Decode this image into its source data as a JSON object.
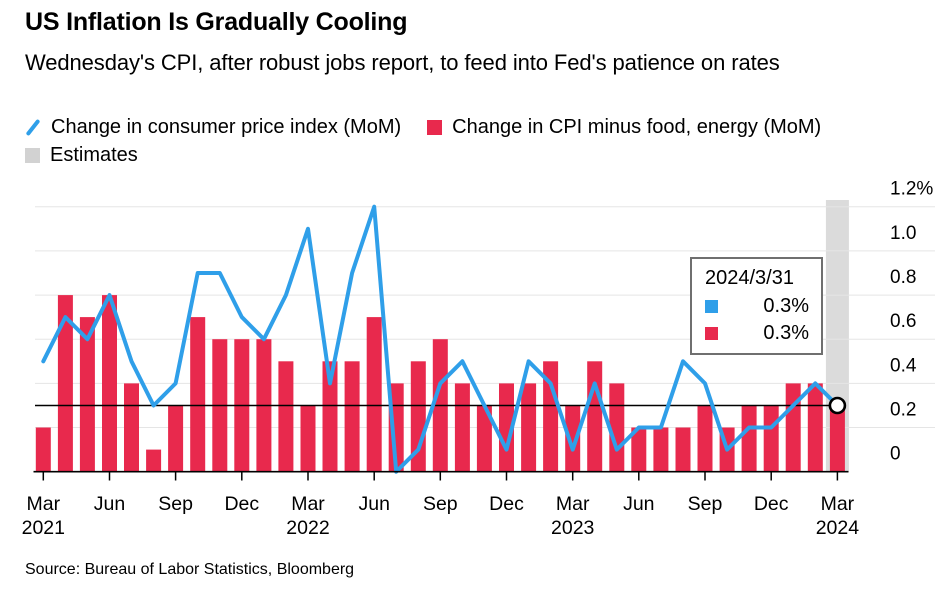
{
  "header": {
    "title": "US Inflation Is Gradually Cooling",
    "subtitle": "Wednesday's CPI, after robust jobs report, to feed into Fed's patience on rates"
  },
  "legend": [
    {
      "label": "Change in consumer price index (MoM)",
      "type": "line",
      "color": "#2F9FE9"
    },
    {
      "label": "Change in CPI minus food, energy (MoM)",
      "type": "bar",
      "color": "#E8294D"
    },
    {
      "label": "Estimates",
      "type": "band",
      "color": "#D2D2D2"
    }
  ],
  "tooltip": {
    "date": "2024/3/31",
    "rows": [
      {
        "series": "Change in consumer price index (MoM)",
        "color": "#2F9FE9",
        "value": "0.3%"
      },
      {
        "series": "Change in CPI minus food, energy (MoM)",
        "color": "#E8294D",
        "value": "0.3%"
      }
    ]
  },
  "source": "Source: Bureau of Labor Statistics, Bloomberg",
  "chart_data": {
    "type": "bar+line",
    "title": "US Inflation Is Gradually Cooling",
    "x": [
      "Mar 2021",
      "Apr 2021",
      "May 2021",
      "Jun 2021",
      "Jul 2021",
      "Aug 2021",
      "Sep 2021",
      "Oct 2021",
      "Nov 2021",
      "Dec 2021",
      "Jan 2022",
      "Feb 2022",
      "Mar 2022",
      "Apr 2022",
      "May 2022",
      "Jun 2022",
      "Jul 2022",
      "Aug 2022",
      "Sep 2022",
      "Oct 2022",
      "Nov 2022",
      "Dec 2022",
      "Jan 2023",
      "Feb 2023",
      "Mar 2023",
      "Apr 2023",
      "May 2023",
      "Jun 2023",
      "Jul 2023",
      "Aug 2023",
      "Sep 2023",
      "Oct 2023",
      "Nov 2023",
      "Dec 2023",
      "Jan 2024",
      "Feb 2024",
      "Mar 2024"
    ],
    "series": [
      {
        "name": "Change in consumer price index (MoM)",
        "type": "line",
        "color": "#2F9FE9",
        "values": [
          0.5,
          0.7,
          0.6,
          0.8,
          0.5,
          0.3,
          0.4,
          0.9,
          0.9,
          0.7,
          0.6,
          0.8,
          1.1,
          0.4,
          0.9,
          1.2,
          0.0,
          0.1,
          0.4,
          0.5,
          0.3,
          0.1,
          0.5,
          0.4,
          0.1,
          0.4,
          0.1,
          0.2,
          0.2,
          0.5,
          0.4,
          0.1,
          0.2,
          0.2,
          0.3,
          0.4,
          0.3
        ]
      },
      {
        "name": "Change in CPI minus food, energy (MoM)",
        "type": "bar",
        "color": "#E8294D",
        "values": [
          0.2,
          0.8,
          0.7,
          0.8,
          0.4,
          0.1,
          0.3,
          0.7,
          0.6,
          0.6,
          0.6,
          0.5,
          0.3,
          0.5,
          0.5,
          0.7,
          0.4,
          0.5,
          0.6,
          0.4,
          0.3,
          0.4,
          0.4,
          0.5,
          0.3,
          0.5,
          0.4,
          0.2,
          0.2,
          0.2,
          0.3,
          0.2,
          0.3,
          0.3,
          0.4,
          0.4,
          0.3
        ]
      }
    ],
    "estimates": {
      "index": 36,
      "label": "Estimates",
      "band_color": "#DBDBDB"
    },
    "last_point": {
      "index": 36,
      "value": 0.3,
      "marker": "open-circle"
    },
    "tracking_line_value": 0.3,
    "ylim": [
      0,
      1.2
    ],
    "yticks": [
      0,
      0.2,
      0.4,
      0.6,
      0.8,
      1.0,
      1.2
    ],
    "ytick_labels": [
      "0",
      "0.2",
      "0.4",
      "0.6",
      "0.8",
      "1.0",
      "1.2%"
    ],
    "xticks": [
      {
        "i": 0,
        "month": "Mar",
        "year": "2021"
      },
      {
        "i": 3,
        "month": "Jun"
      },
      {
        "i": 6,
        "month": "Sep"
      },
      {
        "i": 9,
        "month": "Dec"
      },
      {
        "i": 12,
        "month": "Mar",
        "year": "2022"
      },
      {
        "i": 15,
        "month": "Jun"
      },
      {
        "i": 18,
        "month": "Sep"
      },
      {
        "i": 21,
        "month": "Dec"
      },
      {
        "i": 24,
        "month": "Mar",
        "year": "2023"
      },
      {
        "i": 27,
        "month": "Jun"
      },
      {
        "i": 30,
        "month": "Sep"
      },
      {
        "i": 33,
        "month": "Dec"
      },
      {
        "i": 36,
        "month": "Mar",
        "year": "2024"
      }
    ],
    "grid": true,
    "grid_color": "#E5E5E5",
    "legend_position": "top",
    "ylabel": "",
    "xlabel": ""
  }
}
